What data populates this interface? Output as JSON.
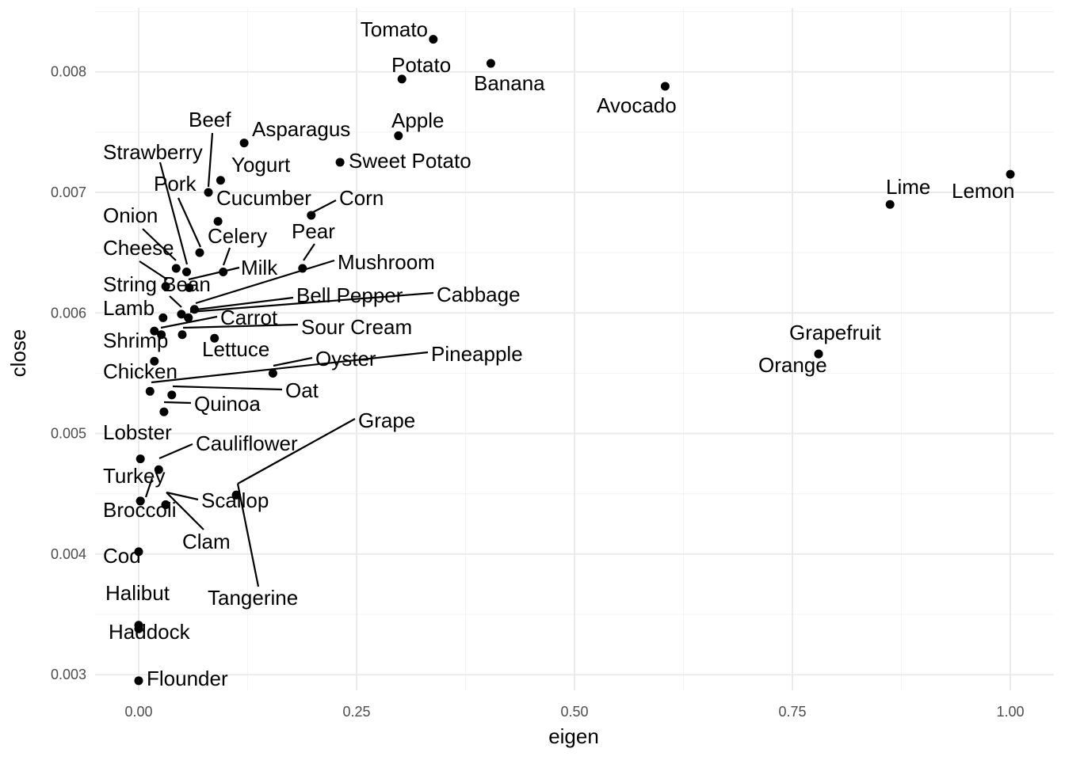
{
  "chart_data": {
    "type": "scatter",
    "xlabel": "eigen",
    "ylabel": "close",
    "xlim": [
      -0.05,
      1.05
    ],
    "ylim": [
      0.00287,
      0.00853
    ],
    "x_ticks": [
      "0.00",
      "0.25",
      "0.50",
      "0.75",
      "1.00"
    ],
    "x_tick_values": [
      0,
      0.25,
      0.5,
      0.75,
      1.0
    ],
    "y_ticks": [
      "0.003",
      "0.004",
      "0.005",
      "0.006",
      "0.007",
      "0.008"
    ],
    "y_tick_values": [
      0.003,
      0.004,
      0.005,
      0.006,
      0.007,
      0.008
    ],
    "grid": true,
    "point_color": "#000000",
    "points": [
      {
        "label": "Tomato",
        "x": 0.338,
        "y": 0.00827
      },
      {
        "label": "Banana",
        "x": 0.404,
        "y": 0.00807
      },
      {
        "label": "Potato",
        "x": 0.302,
        "y": 0.00794
      },
      {
        "label": "Avocado",
        "x": 0.604,
        "y": 0.00788
      },
      {
        "label": "Apple",
        "x": 0.298,
        "y": 0.00747
      },
      {
        "label": "Asparagus",
        "x": 0.121,
        "y": 0.00741
      },
      {
        "label": "Sweet Potato",
        "x": 0.231,
        "y": 0.00725
      },
      {
        "label": "Lemon",
        "x": 1.0,
        "y": 0.00715
      },
      {
        "label": "Yogurt",
        "x": 0.094,
        "y": 0.0071
      },
      {
        "label": "Beef",
        "x": 0.08,
        "y": 0.007
      },
      {
        "label": "Lime",
        "x": 0.862,
        "y": 0.0069
      },
      {
        "label": "Corn",
        "x": 0.198,
        "y": 0.00681
      },
      {
        "label": "Cucumber",
        "x": 0.091,
        "y": 0.00676
      },
      {
        "label": "Strawberry",
        "x": 0.055,
        "y": 0.00634
      },
      {
        "label": "Pork",
        "x": 0.07,
        "y": 0.0065
      },
      {
        "label": "Celery",
        "x": 0.097,
        "y": 0.00634
      },
      {
        "label": "Pear",
        "x": 0.188,
        "y": 0.00637
      },
      {
        "label": "Onion",
        "x": 0.043,
        "y": 0.00637
      },
      {
        "label": "Cheese",
        "x": 0.031,
        "y": 0.00622
      },
      {
        "label": "Milk",
        "x": 0.058,
        "y": 0.00621
      },
      {
        "label": "Mushroom",
        "x": 0.064,
        "y": 0.00603
      },
      {
        "label": "String Bean",
        "x": 0.049,
        "y": 0.00599
      },
      {
        "label": "Bell Pepper",
        "x": 0.057,
        "y": 0.00596
      },
      {
        "label": "Lamb",
        "x": 0.028,
        "y": 0.00596
      },
      {
        "label": "Cabbage",
        "x": 0.057,
        "y": 0.00596
      },
      {
        "label": "Shrimp",
        "x": 0.018,
        "y": 0.00585
      },
      {
        "label": "Carrot",
        "x": 0.026,
        "y": 0.00582
      },
      {
        "label": "Sour Cream",
        "x": 0.05,
        "y": 0.00582
      },
      {
        "label": "Lettuce",
        "x": 0.087,
        "y": 0.00579
      },
      {
        "label": "Grapefruit",
        "x": 0.78,
        "y": 0.00566
      },
      {
        "label": "Chicken",
        "x": 0.018,
        "y": 0.0056
      },
      {
        "label": "Oyster",
        "x": 0.154,
        "y": 0.0055
      },
      {
        "label": "Pineapple",
        "x": 0.013,
        "y": 0.00535
      },
      {
        "label": "Oat",
        "x": 0.038,
        "y": 0.00532
      },
      {
        "label": "Quinoa",
        "x": 0.029,
        "y": 0.00518
      },
      {
        "label": "Orange",
        "x": 0.78,
        "y": 0.00566
      },
      {
        "label": "Lobster",
        "x": 0.002,
        "y": 0.00479
      },
      {
        "label": "Cauliflower",
        "x": 0.023,
        "y": 0.0047
      },
      {
        "label": "Grape",
        "x": 0.112,
        "y": 0.00449
      },
      {
        "label": "Turkey",
        "x": 0.002,
        "y": 0.00444
      },
      {
        "label": "Scallop",
        "x": 0.031,
        "y": 0.00441
      },
      {
        "label": "Broccoli",
        "x": 0.002,
        "y": 0.00444
      },
      {
        "label": "Clam",
        "x": 0.031,
        "y": 0.00441
      },
      {
        "label": "Tangerine",
        "x": 0.112,
        "y": 0.00449
      },
      {
        "label": "Cod",
        "x": 0.0,
        "y": 0.00402
      },
      {
        "label": "Halibut",
        "x": 0.0,
        "y": 0.00341
      },
      {
        "label": "Haddock",
        "x": 0.0,
        "y": 0.00338
      },
      {
        "label": "Flounder",
        "x": 0.0,
        "y": 0.00295
      }
    ]
  }
}
